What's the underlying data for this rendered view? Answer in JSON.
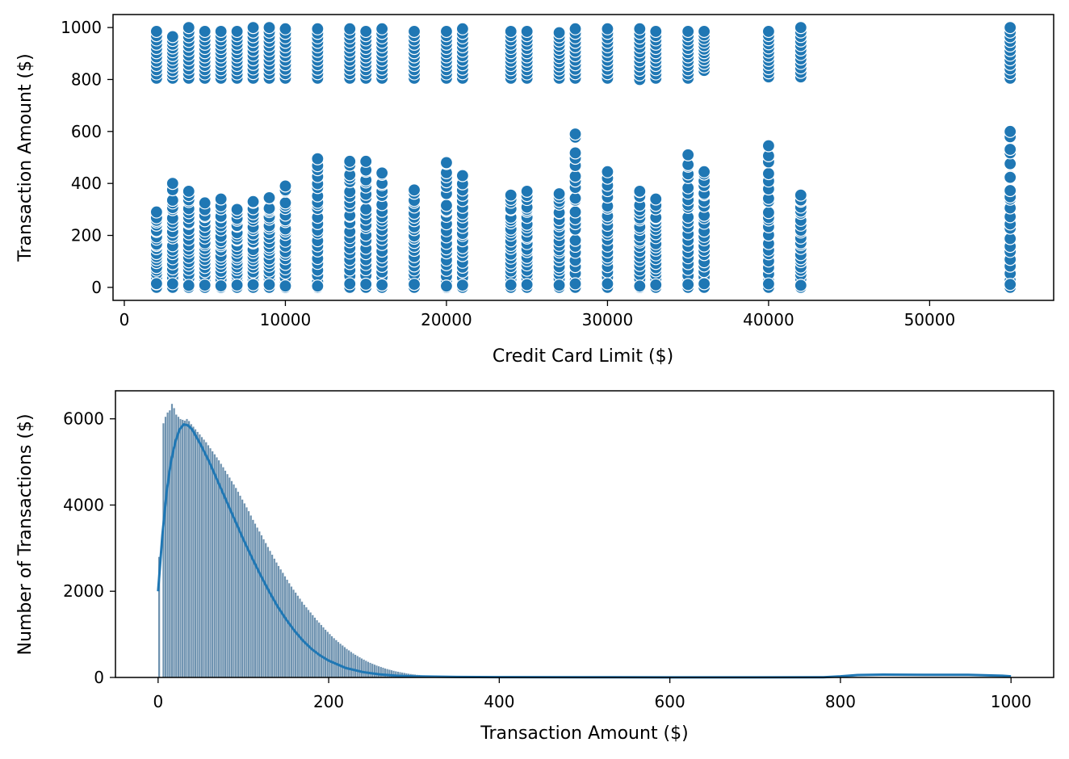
{
  "chart_data": [
    {
      "type": "scatter",
      "xlabel": "Credit Card Limit ($)",
      "ylabel": "Transaction Amount ($)",
      "xlim": [
        -700,
        57700
      ],
      "ylim": [
        -50,
        1050
      ],
      "xticks": [
        0,
        10000,
        20000,
        30000,
        40000,
        50000
      ],
      "yticks": [
        0,
        200,
        400,
        600,
        800,
        1000
      ],
      "grid": false,
      "marker_color": "#1f77b4",
      "marker_edge_color": "#ffffff",
      "columns": [
        {
          "x": 2000,
          "low_max": 290,
          "high_min": 805,
          "high_max": 985
        },
        {
          "x": 3000,
          "low_max": 400,
          "high_min": 805,
          "high_max": 965
        },
        {
          "x": 4000,
          "low_max": 370,
          "high_min": 805,
          "high_max": 1000
        },
        {
          "x": 5000,
          "low_max": 325,
          "high_min": 805,
          "high_max": 985
        },
        {
          "x": 6000,
          "low_max": 340,
          "high_min": 805,
          "high_max": 985
        },
        {
          "x": 7000,
          "low_max": 300,
          "high_min": 805,
          "high_max": 985
        },
        {
          "x": 8000,
          "low_max": 330,
          "high_min": 805,
          "high_max": 1000
        },
        {
          "x": 9000,
          "low_max": 345,
          "high_min": 805,
          "high_max": 1000
        },
        {
          "x": 10000,
          "low_max": 390,
          "high_min": 805,
          "high_max": 995
        },
        {
          "x": 12000,
          "low_max": 495,
          "high_min": 805,
          "high_max": 995
        },
        {
          "x": 14000,
          "low_max": 485,
          "high_min": 805,
          "high_max": 995
        },
        {
          "x": 15000,
          "low_max": 485,
          "high_min": 805,
          "high_max": 985
        },
        {
          "x": 16000,
          "low_max": 440,
          "high_min": 805,
          "high_max": 995
        },
        {
          "x": 18000,
          "low_max": 375,
          "high_min": 805,
          "high_max": 985
        },
        {
          "x": 20000,
          "low_max": 480,
          "high_min": 805,
          "high_max": 985
        },
        {
          "x": 21000,
          "low_max": 430,
          "high_min": 805,
          "high_max": 995
        },
        {
          "x": 24000,
          "low_max": 355,
          "high_min": 805,
          "high_max": 985
        },
        {
          "x": 25000,
          "low_max": 370,
          "high_min": 805,
          "high_max": 985
        },
        {
          "x": 27000,
          "low_max": 360,
          "high_min": 805,
          "high_max": 980
        },
        {
          "x": 28000,
          "low_max": 590,
          "high_min": 805,
          "high_max": 995
        },
        {
          "x": 30000,
          "low_max": 445,
          "high_min": 805,
          "high_max": 995
        },
        {
          "x": 32000,
          "low_max": 370,
          "high_min": 800,
          "high_max": 995
        },
        {
          "x": 33000,
          "low_max": 340,
          "high_min": 805,
          "high_max": 985
        },
        {
          "x": 35000,
          "low_max": 510,
          "high_min": 805,
          "high_max": 985
        },
        {
          "x": 36000,
          "low_max": 445,
          "high_min": 835,
          "high_max": 985
        },
        {
          "x": 40000,
          "low_max": 545,
          "high_min": 810,
          "high_max": 985
        },
        {
          "x": 42000,
          "low_max": 355,
          "high_min": 810,
          "high_max": 1000
        },
        {
          "x": 55000,
          "low_max": 600,
          "high_min": 805,
          "high_max": 1000
        }
      ]
    },
    {
      "type": "histogram",
      "xlabel": "Transaction Amount ($)",
      "ylabel": "Number of Transactions ($)",
      "xlim": [
        -50,
        1050
      ],
      "ylim": [
        0,
        6650
      ],
      "xticks": [
        0,
        200,
        400,
        600,
        800,
        1000
      ],
      "yticks": [
        0,
        2000,
        4000,
        6000
      ],
      "grid": false,
      "bar_color": "#6f93b0",
      "kde_color": "#1f77b4",
      "bin_width": 2.5,
      "bins_from": 0,
      "counts": [
        2800,
        0,
        5900,
        6050,
        6150,
        6200,
        6350,
        6250,
        6100,
        6050,
        6000,
        5980,
        5960,
        6000,
        5950,
        5880,
        5820,
        5760,
        5700,
        5640,
        5580,
        5520,
        5460,
        5390,
        5320,
        5250,
        5180,
        5110,
        5040,
        4960,
        4880,
        4800,
        4720,
        4640,
        4560,
        4480,
        4400,
        4310,
        4220,
        4130,
        4040,
        3950,
        3860,
        3760,
        3660,
        3570,
        3480,
        3390,
        3300,
        3210,
        3120,
        3030,
        2940,
        2850,
        2760,
        2670,
        2590,
        2510,
        2430,
        2350,
        2270,
        2190,
        2110,
        2040,
        1970,
        1900,
        1830,
        1760,
        1690,
        1630,
        1570,
        1510,
        1450,
        1390,
        1330,
        1275,
        1220,
        1165,
        1110,
        1060,
        1010,
        960,
        915,
        870,
        825,
        785,
        745,
        705,
        665,
        630,
        595,
        560,
        530,
        500,
        470,
        442,
        415,
        390,
        365,
        342,
        320,
        300,
        280,
        262,
        245,
        228,
        212,
        197,
        183,
        170,
        158,
        146,
        135,
        125,
        115,
        106,
        98,
        90,
        83,
        76,
        70,
        64,
        58,
        53,
        48,
        44,
        40,
        36,
        33,
        30,
        27,
        24,
        22,
        20,
        18,
        16,
        14,
        12,
        11,
        10,
        9,
        8,
        7,
        6,
        5,
        4,
        3,
        2,
        2,
        1
      ],
      "kde": [
        [
          0,
          2000
        ],
        [
          5,
          3300
        ],
        [
          10,
          4300
        ],
        [
          15,
          5000
        ],
        [
          20,
          5450
        ],
        [
          25,
          5750
        ],
        [
          30,
          5870
        ],
        [
          35,
          5850
        ],
        [
          40,
          5750
        ],
        [
          50,
          5400
        ],
        [
          60,
          5000
        ],
        [
          70,
          4550
        ],
        [
          80,
          4100
        ],
        [
          90,
          3650
        ],
        [
          100,
          3200
        ],
        [
          110,
          2780
        ],
        [
          120,
          2380
        ],
        [
          130,
          2000
        ],
        [
          140,
          1650
        ],
        [
          150,
          1350
        ],
        [
          160,
          1080
        ],
        [
          170,
          850
        ],
        [
          180,
          660
        ],
        [
          190,
          510
        ],
        [
          200,
          390
        ],
        [
          220,
          220
        ],
        [
          240,
          125
        ],
        [
          260,
          70
        ],
        [
          280,
          40
        ],
        [
          300,
          25
        ],
        [
          350,
          12
        ],
        [
          400,
          8
        ],
        [
          500,
          5
        ],
        [
          600,
          3
        ],
        [
          700,
          2
        ],
        [
          780,
          5
        ],
        [
          800,
          25
        ],
        [
          820,
          55
        ],
        [
          850,
          65
        ],
        [
          900,
          60
        ],
        [
          950,
          60
        ],
        [
          990,
          40
        ],
        [
          1000,
          25
        ]
      ]
    }
  ]
}
